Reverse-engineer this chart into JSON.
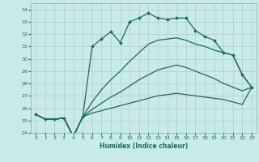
{
  "title": "",
  "xlabel": "Humidex (Indice chaleur)",
  "background_color": "#c8eaea",
  "grid_color": "#b0cccc",
  "line_color": "#1a6b5a",
  "xlim": [
    -0.5,
    23.5
  ],
  "ylim": [
    24,
    34.5
  ],
  "yticks": [
    24,
    25,
    26,
    27,
    28,
    29,
    30,
    31,
    32,
    33,
    34
  ],
  "xticks": [
    0,
    1,
    2,
    3,
    4,
    5,
    6,
    7,
    8,
    9,
    10,
    11,
    12,
    13,
    14,
    15,
    16,
    17,
    18,
    19,
    20,
    21,
    22,
    23
  ],
  "series_main": [
    25.5,
    25.1,
    25.1,
    25.2,
    23.7,
    25.3,
    31.0,
    31.6,
    32.2,
    31.3,
    33.0,
    33.3,
    33.7,
    33.3,
    33.2,
    33.3,
    33.3,
    32.3,
    31.8,
    31.5,
    30.5,
    30.3,
    28.7,
    27.7
  ],
  "series_2": [
    25.5,
    25.1,
    25.1,
    25.2,
    23.7,
    25.3,
    26.5,
    27.5,
    28.3,
    29.0,
    29.8,
    30.5,
    31.2,
    31.5,
    31.6,
    31.7,
    31.5,
    31.2,
    31.0,
    30.7,
    30.5,
    30.3,
    28.7,
    27.7
  ],
  "series_3": [
    25.5,
    25.1,
    25.1,
    25.2,
    23.7,
    25.3,
    25.9,
    26.4,
    26.9,
    27.3,
    27.8,
    28.3,
    28.7,
    29.1,
    29.3,
    29.5,
    29.3,
    29.0,
    28.7,
    28.4,
    28.0,
    27.7,
    27.4,
    27.7
  ],
  "series_4": [
    25.5,
    25.1,
    25.1,
    25.2,
    23.7,
    25.3,
    25.6,
    25.8,
    26.0,
    26.2,
    26.4,
    26.6,
    26.8,
    27.0,
    27.1,
    27.2,
    27.1,
    27.0,
    26.9,
    26.8,
    26.7,
    26.5,
    26.3,
    27.7
  ]
}
